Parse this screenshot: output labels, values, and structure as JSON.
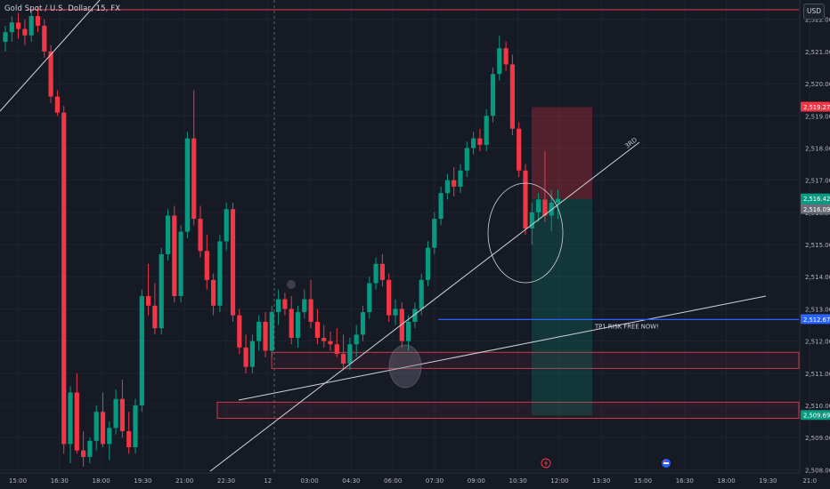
{
  "header": {
    "title": "Gold Spot / U.S. Dollar, 15, FX",
    "currency_button": "USD"
  },
  "colors": {
    "background": "#161a25",
    "grid": "#1f2330",
    "up": "#089981",
    "down": "#f23645",
    "resistance_line": "#d9434e",
    "tp_line": "#2962ff",
    "trend_line": "#d1d4dc",
    "zone_border": "#c83a48"
  },
  "annotations": {
    "trend_label": "3RD",
    "tp_label": "TP1 RISK FREE NOW!"
  },
  "event_icons": [
    "lightning-icon",
    "flag-us-icon"
  ],
  "chart_data": {
    "type": "candlestick",
    "title": "Gold Spot / U.S. Dollar, 15, FX",
    "ylim": [
      2507.9,
      2522.6
    ],
    "y_ticks": [
      "2,522.00",
      "2,521.00",
      "2,520.00",
      "2,519.00",
      "2,518.00",
      "2,517.00",
      "2,516.00",
      "2,515.00",
      "2,514.00",
      "2,513.00",
      "2,512.00",
      "2,511.00",
      "2,510.00",
      "2,509.00",
      "2,508.00"
    ],
    "x_ticks": [
      "15:00",
      "16:30",
      "18:00",
      "19:30",
      "21:00",
      "22:30",
      "12",
      "03:00",
      "04:30",
      "06:00",
      "07:30",
      "09:00",
      "10:30",
      "12:00",
      "13:30",
      "15:00",
      "16:30",
      "18:00",
      "19:30",
      "21:0"
    ],
    "price_labels": [
      {
        "text": "2,519.27",
        "value": 2519.27,
        "color": "#f23645"
      },
      {
        "text": "2,516.42",
        "sub": "08:43",
        "value": 2516.42,
        "color": "#089981"
      },
      {
        "text": "2,516.09",
        "value": 2516.09,
        "color": "#6a6d78"
      },
      {
        "text": "2,512.67",
        "value": 2512.67,
        "color": "#2962ff"
      },
      {
        "text": "2,509.69",
        "value": 2509.69,
        "color": "#089981"
      }
    ],
    "levels": {
      "resistance": 2522.3,
      "tp1": 2512.67,
      "zone_upper": [
        2511.65,
        2511.15
      ],
      "zone_lower": [
        2510.1,
        2509.6
      ]
    },
    "position": {
      "entry": 2516.42,
      "stop": 2519.27,
      "target": 2509.69
    },
    "candles": [
      [
        2521.3,
        2521.8,
        2521.0,
        2521.6
      ],
      [
        2521.6,
        2522.1,
        2521.3,
        2521.9
      ],
      [
        2521.9,
        2522.2,
        2521.4,
        2521.7
      ],
      [
        2521.7,
        2522.0,
        2521.2,
        2521.5
      ],
      [
        2521.5,
        2522.3,
        2521.3,
        2522.1
      ],
      [
        2522.1,
        2522.4,
        2521.6,
        2521.8
      ],
      [
        2521.8,
        2522.0,
        2520.8,
        2521.0
      ],
      [
        2521.0,
        2521.2,
        2519.4,
        2519.6
      ],
      [
        2519.6,
        2519.8,
        2519.0,
        2519.1
      ],
      [
        2519.1,
        2519.3,
        2508.5,
        2508.8
      ],
      [
        2508.8,
        2510.6,
        2508.2,
        2510.4
      ],
      [
        2510.4,
        2511.0,
        2508.5,
        2508.6
      ],
      [
        2508.6,
        2509.2,
        2508.1,
        2508.4
      ],
      [
        2508.4,
        2509.0,
        2508.2,
        2508.9
      ],
      [
        2508.9,
        2510.0,
        2508.6,
        2509.8
      ],
      [
        2509.8,
        2510.4,
        2508.7,
        2508.8
      ],
      [
        2508.8,
        2509.5,
        2508.3,
        2509.3
      ],
      [
        2509.3,
        2510.5,
        2509.1,
        2510.2
      ],
      [
        2510.2,
        2510.8,
        2509.0,
        2509.2
      ],
      [
        2509.2,
        2509.8,
        2508.5,
        2508.7
      ],
      [
        2508.7,
        2510.2,
        2508.5,
        2510.0
      ],
      [
        2510.0,
        2513.6,
        2509.8,
        2513.4
      ],
      [
        2513.4,
        2514.4,
        2512.8,
        2513.1
      ],
      [
        2513.1,
        2513.8,
        2512.2,
        2512.4
      ],
      [
        2512.4,
        2514.9,
        2512.2,
        2514.7
      ],
      [
        2514.7,
        2516.1,
        2514.5,
        2515.9
      ],
      [
        2515.9,
        2516.2,
        2513.2,
        2513.4
      ],
      [
        2513.4,
        2515.6,
        2513.2,
        2515.4
      ],
      [
        2515.4,
        2518.5,
        2515.2,
        2518.3
      ],
      [
        2518.3,
        2519.8,
        2515.6,
        2515.8
      ],
      [
        2515.8,
        2516.2,
        2514.6,
        2514.8
      ],
      [
        2514.8,
        2515.3,
        2513.6,
        2513.9
      ],
      [
        2513.9,
        2514.1,
        2512.8,
        2513.1
      ],
      [
        2513.1,
        2515.3,
        2512.9,
        2515.1
      ],
      [
        2515.1,
        2516.3,
        2514.8,
        2516.1
      ],
      [
        2516.1,
        2516.3,
        2512.6,
        2512.8
      ],
      [
        2512.8,
        2513.0,
        2511.6,
        2511.8
      ],
      [
        2511.8,
        2512.2,
        2511.0,
        2511.2
      ],
      [
        2511.2,
        2512.2,
        2511.0,
        2512.0
      ],
      [
        2512.0,
        2512.8,
        2511.7,
        2512.6
      ],
      [
        2512.6,
        2512.9,
        2511.5,
        2511.7
      ],
      [
        2511.7,
        2513.1,
        2511.5,
        2512.9
      ],
      [
        2512.9,
        2513.6,
        2512.5,
        2513.3
      ],
      [
        2513.3,
        2513.5,
        2512.8,
        2513.0
      ],
      [
        2513.0,
        2513.4,
        2511.9,
        2512.1
      ],
      [
        2512.1,
        2513.1,
        2511.8,
        2512.9
      ],
      [
        2512.9,
        2513.6,
        2512.7,
        2513.3
      ],
      [
        2513.3,
        2513.9,
        2512.4,
        2512.6
      ],
      [
        2512.6,
        2513.0,
        2511.9,
        2512.1
      ],
      [
        2512.1,
        2512.5,
        2511.8,
        2512.0
      ],
      [
        2512.0,
        2512.3,
        2511.7,
        2511.9
      ],
      [
        2511.9,
        2512.4,
        2511.5,
        2511.6
      ],
      [
        2511.6,
        2512.2,
        2511.1,
        2511.3
      ],
      [
        2511.3,
        2512.1,
        2511.1,
        2511.9
      ],
      [
        2511.9,
        2512.5,
        2511.5,
        2512.2
      ],
      [
        2512.2,
        2513.1,
        2512.0,
        2512.9
      ],
      [
        2512.9,
        2514.0,
        2512.7,
        2513.8
      ],
      [
        2513.8,
        2514.6,
        2513.6,
        2514.4
      ],
      [
        2514.4,
        2514.7,
        2513.7,
        2513.9
      ],
      [
        2513.9,
        2514.1,
        2512.6,
        2512.8
      ],
      [
        2512.8,
        2513.3,
        2512.5,
        2513.0
      ],
      [
        2513.0,
        2513.2,
        2511.8,
        2512.0
      ],
      [
        2512.0,
        2512.8,
        2511.7,
        2512.6
      ],
      [
        2512.6,
        2513.2,
        2512.4,
        2513.0
      ],
      [
        2513.0,
        2514.1,
        2512.8,
        2513.9
      ],
      [
        2513.9,
        2515.1,
        2513.7,
        2514.9
      ],
      [
        2514.9,
        2516.0,
        2514.7,
        2515.8
      ],
      [
        2515.8,
        2516.8,
        2515.6,
        2516.6
      ],
      [
        2516.6,
        2517.2,
        2516.4,
        2517.0
      ],
      [
        2517.0,
        2517.4,
        2516.5,
        2516.8
      ],
      [
        2516.8,
        2517.5,
        2516.6,
        2517.3
      ],
      [
        2517.3,
        2518.2,
        2517.1,
        2518.0
      ],
      [
        2518.0,
        2518.5,
        2517.8,
        2518.3
      ],
      [
        2518.3,
        2518.6,
        2517.9,
        2518.1
      ],
      [
        2518.1,
        2519.2,
        2517.9,
        2519.0
      ],
      [
        2519.0,
        2520.5,
        2518.8,
        2520.3
      ],
      [
        2520.3,
        2521.5,
        2520.1,
        2521.1
      ],
      [
        2521.1,
        2521.3,
        2520.4,
        2520.6
      ],
      [
        2520.6,
        2520.9,
        2518.4,
        2518.6
      ],
      [
        2518.6,
        2518.8,
        2517.1,
        2517.3
      ],
      [
        2517.3,
        2517.5,
        2515.3,
        2515.5
      ],
      [
        2515.5,
        2516.3,
        2515.0,
        2516.0
      ],
      [
        2516.0,
        2516.6,
        2515.7,
        2516.4
      ],
      [
        2516.4,
        2517.9,
        2515.7,
        2515.9
      ],
      [
        2515.9,
        2516.7,
        2515.4,
        2516.3
      ],
      [
        2516.3,
        2516.7,
        2515.8,
        2516.42
      ]
    ]
  }
}
